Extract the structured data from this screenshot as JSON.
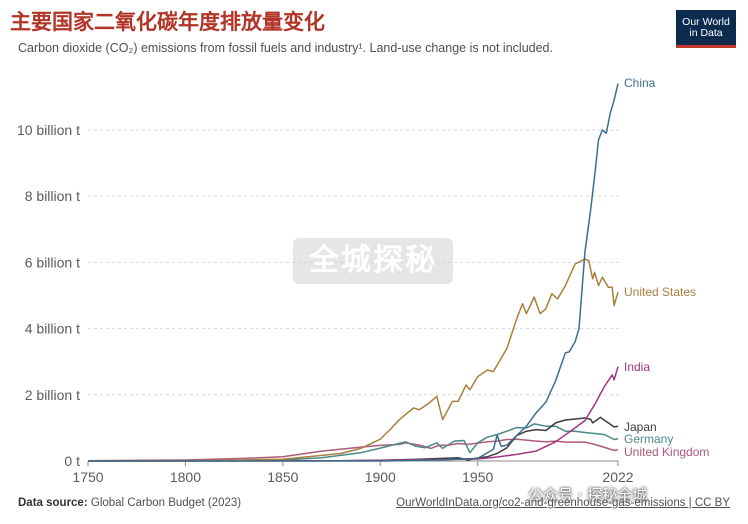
{
  "header": {
    "title": "主要国家二氧化碳年度排放量变化",
    "subtitle": "Carbon dioxide (CO₂) emissions from fossil fuels and industry¹. Land-use change is not included.",
    "logo_line1": "Our World",
    "logo_line2": "in Data"
  },
  "footer": {
    "source_label": "Data source:",
    "source_text": "Global Carbon Budget (2023)",
    "link": "OurWorldInData.org/co2-and-greenhouse-gas-emissions | CC BY"
  },
  "watermark": {
    "center_text": "全城探秘",
    "wechat_text": "公众号 · 探秘全城"
  },
  "colors": {
    "China": "#3b6e8e",
    "United States": "#a8803c",
    "India": "#a2357e",
    "Japan": "#3d3d3d",
    "Germany": "#4a8a86",
    "United Kingdom": "#b05a7a"
  },
  "chart_data": {
    "type": "line",
    "title": "主要国家二氧化碳年度排放量变化",
    "xlabel": "",
    "ylabel": "",
    "xlim": [
      1750,
      2022
    ],
    "ylim": [
      0,
      11.6
    ],
    "x_ticks": [
      "1750",
      "1800",
      "1850",
      "1900",
      "1950",
      "2022"
    ],
    "y_ticks": [
      "0 t",
      "2 billion t",
      "4 billion t",
      "6 billion t",
      "8 billion t",
      "10 billion t"
    ],
    "y_tick_values": [
      0,
      2,
      4,
      6,
      8,
      10
    ],
    "grid": "horizontal-dashed",
    "legend": "line-end labels",
    "series": [
      {
        "name": "China",
        "points": [
          [
            1750,
            0
          ],
          [
            1900,
            0
          ],
          [
            1930,
            0.03
          ],
          [
            1950,
            0.08
          ],
          [
            1958,
            0.35
          ],
          [
            1960,
            0.78
          ],
          [
            1962,
            0.44
          ],
          [
            1965,
            0.48
          ],
          [
            1970,
            0.77
          ],
          [
            1975,
            1.05
          ],
          [
            1980,
            1.46
          ],
          [
            1985,
            1.78
          ],
          [
            1990,
            2.42
          ],
          [
            1995,
            3.27
          ],
          [
            1997,
            3.3
          ],
          [
            2000,
            3.6
          ],
          [
            2002,
            4.0
          ],
          [
            2005,
            6.3
          ],
          [
            2008,
            7.6
          ],
          [
            2010,
            8.6
          ],
          [
            2012,
            9.7
          ],
          [
            2014,
            10.0
          ],
          [
            2016,
            9.9
          ],
          [
            2018,
            10.5
          ],
          [
            2020,
            10.9
          ],
          [
            2022,
            11.4
          ]
        ]
      },
      {
        "name": "United States",
        "points": [
          [
            1750,
            0
          ],
          [
            1800,
            0.002
          ],
          [
            1850,
            0.05
          ],
          [
            1870,
            0.17
          ],
          [
            1880,
            0.23
          ],
          [
            1890,
            0.38
          ],
          [
            1900,
            0.66
          ],
          [
            1905,
            0.95
          ],
          [
            1910,
            1.26
          ],
          [
            1917,
            1.6
          ],
          [
            1920,
            1.55
          ],
          [
            1925,
            1.75
          ],
          [
            1929,
            1.95
          ],
          [
            1932,
            1.25
          ],
          [
            1937,
            1.8
          ],
          [
            1940,
            1.8
          ],
          [
            1944,
            2.3
          ],
          [
            1946,
            2.15
          ],
          [
            1950,
            2.55
          ],
          [
            1955,
            2.75
          ],
          [
            1958,
            2.7
          ],
          [
            1960,
            2.9
          ],
          [
            1965,
            3.4
          ],
          [
            1970,
            4.3
          ],
          [
            1973,
            4.75
          ],
          [
            1975,
            4.45
          ],
          [
            1979,
            4.95
          ],
          [
            1982,
            4.45
          ],
          [
            1985,
            4.6
          ],
          [
            1988,
            5.05
          ],
          [
            1991,
            4.9
          ],
          [
            1995,
            5.3
          ],
          [
            2000,
            5.95
          ],
          [
            2005,
            6.1
          ],
          [
            2007,
            6.05
          ],
          [
            2009,
            5.5
          ],
          [
            2010,
            5.7
          ],
          [
            2012,
            5.3
          ],
          [
            2014,
            5.55
          ],
          [
            2017,
            5.25
          ],
          [
            2019,
            5.25
          ],
          [
            2020,
            4.7
          ],
          [
            2022,
            5.1
          ]
        ]
      },
      {
        "name": "India",
        "points": [
          [
            1750,
            0
          ],
          [
            1880,
            0.005
          ],
          [
            1900,
            0.02
          ],
          [
            1950,
            0.06
          ],
          [
            1960,
            0.12
          ],
          [
            1970,
            0.2
          ],
          [
            1980,
            0.3
          ],
          [
            1990,
            0.58
          ],
          [
            2000,
            1.0
          ],
          [
            2005,
            1.22
          ],
          [
            2010,
            1.7
          ],
          [
            2015,
            2.25
          ],
          [
            2019,
            2.6
          ],
          [
            2020,
            2.45
          ],
          [
            2022,
            2.85
          ]
        ]
      },
      {
        "name": "Japan",
        "points": [
          [
            1750,
            0
          ],
          [
            1880,
            0.005
          ],
          [
            1900,
            0.02
          ],
          [
            1920,
            0.05
          ],
          [
            1940,
            0.1
          ],
          [
            1945,
            0.03
          ],
          [
            1950,
            0.09
          ],
          [
            1955,
            0.13
          ],
          [
            1960,
            0.23
          ],
          [
            1965,
            0.4
          ],
          [
            1970,
            0.77
          ],
          [
            1975,
            0.9
          ],
          [
            1980,
            0.95
          ],
          [
            1985,
            0.92
          ],
          [
            1990,
            1.15
          ],
          [
            1995,
            1.24
          ],
          [
            2000,
            1.27
          ],
          [
            2005,
            1.3
          ],
          [
            2008,
            1.26
          ],
          [
            2009,
            1.15
          ],
          [
            2013,
            1.32
          ],
          [
            2015,
            1.23
          ],
          [
            2020,
            1.03
          ],
          [
            2022,
            1.05
          ]
        ]
      },
      {
        "name": "Germany",
        "points": [
          [
            1750,
            0
          ],
          [
            1800,
            0.01
          ],
          [
            1850,
            0.03
          ],
          [
            1870,
            0.1
          ],
          [
            1890,
            0.25
          ],
          [
            1900,
            0.39
          ],
          [
            1913,
            0.58
          ],
          [
            1918,
            0.45
          ],
          [
            1923,
            0.4
          ],
          [
            1929,
            0.55
          ],
          [
            1932,
            0.38
          ],
          [
            1938,
            0.6
          ],
          [
            1943,
            0.62
          ],
          [
            1946,
            0.25
          ],
          [
            1950,
            0.55
          ],
          [
            1955,
            0.72
          ],
          [
            1960,
            0.8
          ],
          [
            1965,
            0.9
          ],
          [
            1970,
            1.01
          ],
          [
            1975,
            1.0
          ],
          [
            1979,
            1.12
          ],
          [
            1985,
            1.05
          ],
          [
            1990,
            1.05
          ],
          [
            1995,
            0.9
          ],
          [
            2000,
            0.9
          ],
          [
            2005,
            0.86
          ],
          [
            2010,
            0.83
          ],
          [
            2015,
            0.8
          ],
          [
            2020,
            0.65
          ],
          [
            2022,
            0.67
          ]
        ]
      },
      {
        "name": "United Kingdom",
        "points": [
          [
            1750,
            0.01
          ],
          [
            1800,
            0.03
          ],
          [
            1830,
            0.08
          ],
          [
            1850,
            0.13
          ],
          [
            1870,
            0.3
          ],
          [
            1880,
            0.36
          ],
          [
            1890,
            0.42
          ],
          [
            1900,
            0.47
          ],
          [
            1910,
            0.5
          ],
          [
            1913,
            0.55
          ],
          [
            1920,
            0.48
          ],
          [
            1926,
            0.38
          ],
          [
            1930,
            0.47
          ],
          [
            1935,
            0.48
          ],
          [
            1940,
            0.53
          ],
          [
            1945,
            0.5
          ],
          [
            1950,
            0.54
          ],
          [
            1955,
            0.58
          ],
          [
            1960,
            0.6
          ],
          [
            1965,
            0.65
          ],
          [
            1970,
            0.66
          ],
          [
            1975,
            0.63
          ],
          [
            1980,
            0.6
          ],
          [
            1985,
            0.58
          ],
          [
            1990,
            0.6
          ],
          [
            1995,
            0.57
          ],
          [
            2000,
            0.57
          ],
          [
            2005,
            0.57
          ],
          [
            2010,
            0.5
          ],
          [
            2015,
            0.41
          ],
          [
            2020,
            0.32
          ],
          [
            2022,
            0.34
          ]
        ]
      }
    ]
  }
}
